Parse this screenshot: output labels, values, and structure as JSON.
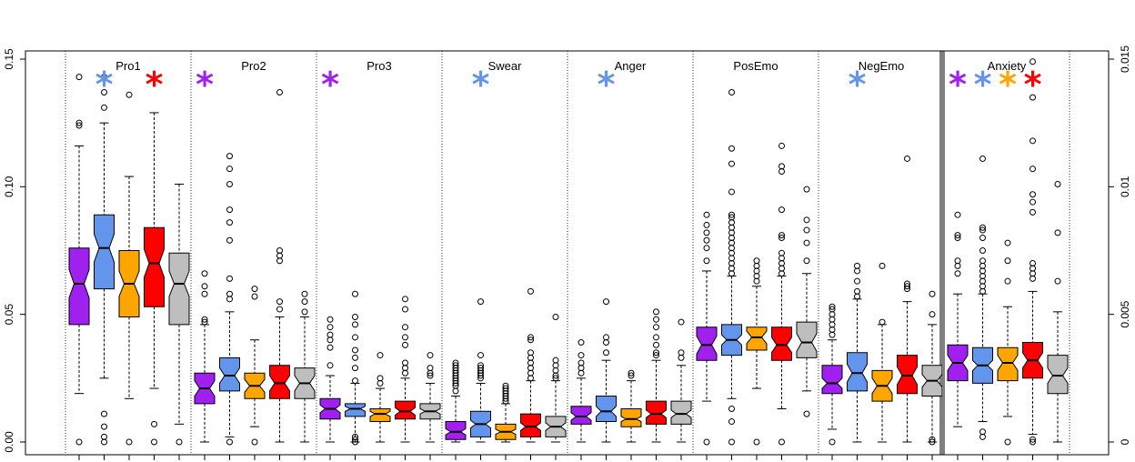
{
  "chart_data": {
    "type": "boxplot",
    "title": "",
    "xlabel": "",
    "ylabel": "",
    "y_left": {
      "lim": [
        0,
        0.155
      ],
      "ticks": [
        0.0,
        0.05,
        0.1,
        0.15
      ],
      "tick_labels": [
        "0.00",
        "0.05",
        "0.10",
        "0.15"
      ]
    },
    "y_right": {
      "lim": [
        0,
        0.0155
      ],
      "ticks": [
        0,
        0.005,
        0.01,
        0.015
      ],
      "tick_labels": [
        "0",
        "0.005",
        "0.01",
        "0.015"
      ]
    },
    "right_axis_groups": [
      "Anxiety"
    ],
    "series_colors": [
      "#a020f0",
      "#6495ed",
      "#ffa500",
      "#ff0000",
      "#bebebe"
    ],
    "groups": [
      {
        "label": "Pro1",
        "stars": [
          1,
          3
        ],
        "boxes": [
          {
            "q1": 0.046,
            "med": 0.062,
            "q3": 0.076,
            "lo": 0.019,
            "hi": 0.116,
            "notch": 0.0055,
            "out": [
              0.143,
              0.124,
              0.125,
              0.0
            ]
          },
          {
            "q1": 0.06,
            "med": 0.076,
            "q3": 0.089,
            "lo": 0.025,
            "hi": 0.125,
            "notch": 0.0055,
            "out": [
              0.143,
              0.137,
              0.131,
              0.011,
              0.006,
              0.002,
              0.0
            ]
          },
          {
            "q1": 0.049,
            "med": 0.062,
            "q3": 0.075,
            "lo": 0.017,
            "hi": 0.104,
            "notch": 0.005,
            "out": [
              0.136,
              0.0
            ]
          },
          {
            "q1": 0.053,
            "med": 0.07,
            "q3": 0.084,
            "lo": 0.021,
            "hi": 0.129,
            "notch": 0.0055,
            "out": [
              0.007,
              0.0
            ]
          },
          {
            "q1": 0.046,
            "med": 0.062,
            "q3": 0.074,
            "lo": 0.007,
            "hi": 0.101,
            "notch": 0.005,
            "out": [
              0.0
            ]
          }
        ]
      },
      {
        "label": "Pro2",
        "stars": [
          0
        ],
        "boxes": [
          {
            "q1": 0.015,
            "med": 0.021,
            "q3": 0.027,
            "lo": 0.0,
            "hi": 0.046,
            "notch": 0.003,
            "out": [
              0.066,
              0.061,
              0.058,
              0.048,
              0.047
            ]
          },
          {
            "q1": 0.02,
            "med": 0.026,
            "q3": 0.033,
            "lo": 0.002,
            "hi": 0.051,
            "notch": 0.003,
            "out": [
              0.112,
              0.107,
              0.101,
              0.091,
              0.086,
              0.079,
              0.064,
              0.058,
              0.056,
              0.0
            ]
          },
          {
            "q1": 0.017,
            "med": 0.022,
            "q3": 0.027,
            "lo": 0.006,
            "hi": 0.04,
            "notch": 0.0025,
            "out": [
              0.06,
              0.057,
              0.0
            ]
          },
          {
            "q1": 0.017,
            "med": 0.023,
            "q3": 0.03,
            "lo": 0.0,
            "hi": 0.049,
            "notch": 0.003,
            "out": [
              0.137,
              0.075,
              0.073,
              0.071,
              0.055,
              0.052
            ]
          },
          {
            "q1": 0.017,
            "med": 0.023,
            "q3": 0.029,
            "lo": 0.0,
            "hi": 0.049,
            "notch": 0.003,
            "out": [
              0.058,
              0.055,
              0.051
            ]
          }
        ]
      },
      {
        "label": "Pro3",
        "stars": [
          0
        ],
        "boxes": [
          {
            "q1": 0.009,
            "med": 0.013,
            "q3": 0.017,
            "lo": 0.0,
            "hi": 0.026,
            "notch": 0.0015,
            "out": [
              0.048,
              0.045,
              0.042,
              0.04,
              0.037,
              0.03
            ]
          },
          {
            "q1": 0.01,
            "med": 0.013,
            "q3": 0.015,
            "lo": 0.0,
            "hi": 0.023,
            "notch": 0.001,
            "out": [
              0.058,
              0.049,
              0.046,
              0.041,
              0.036,
              0.033,
              0.029,
              0.024,
              0.002,
              0.001,
              0.0
            ]
          },
          {
            "q1": 0.008,
            "med": 0.011,
            "q3": 0.013,
            "lo": 0.0,
            "hi": 0.021,
            "notch": 0.001,
            "out": [
              0.034,
              0.025,
              0.023
            ]
          },
          {
            "q1": 0.009,
            "med": 0.012,
            "q3": 0.016,
            "lo": 0.0,
            "hi": 0.025,
            "notch": 0.0015,
            "out": [
              0.056,
              0.052,
              0.045,
              0.041,
              0.038,
              0.031,
              0.029,
              0.027
            ]
          },
          {
            "q1": 0.009,
            "med": 0.012,
            "q3": 0.015,
            "lo": 0.0,
            "hi": 0.023,
            "notch": 0.001,
            "out": [
              0.034,
              0.029,
              0.027,
              0.026
            ]
          }
        ]
      },
      {
        "label": "Swear",
        "stars": [
          1
        ],
        "boxes": [
          {
            "q1": 0.001,
            "med": 0.004,
            "q3": 0.008,
            "lo": 0.0,
            "hi": 0.018,
            "notch": 0.0012,
            "out": [
              0.031,
              0.03,
              0.029,
              0.028,
              0.027,
              0.026,
              0.025,
              0.024,
              0.023,
              0.022,
              0.02
            ]
          },
          {
            "q1": 0.002,
            "med": 0.007,
            "q3": 0.012,
            "lo": 0.0,
            "hi": 0.023,
            "notch": 0.0015,
            "out": [
              0.055,
              0.034,
              0.03,
              0.029,
              0.028,
              0.027,
              0.026,
              0.025
            ]
          },
          {
            "q1": 0.001,
            "med": 0.004,
            "q3": 0.007,
            "lo": 0.0,
            "hi": 0.015,
            "notch": 0.001,
            "out": [
              0.022,
              0.021,
              0.02,
              0.019,
              0.018,
              0.017,
              0.016
            ]
          },
          {
            "q1": 0.002,
            "med": 0.006,
            "q3": 0.011,
            "lo": 0.0,
            "hi": 0.024,
            "notch": 0.0015,
            "out": [
              0.059,
              0.041,
              0.04,
              0.035,
              0.033,
              0.031,
              0.029,
              0.027,
              0.025
            ]
          },
          {
            "q1": 0.002,
            "med": 0.006,
            "q3": 0.01,
            "lo": 0.0,
            "hi": 0.024,
            "notch": 0.0015,
            "out": [
              0.049,
              0.032,
              0.03,
              0.028,
              0.026,
              0.025
            ]
          }
        ]
      },
      {
        "label": "Anger",
        "stars": [
          1
        ],
        "boxes": [
          {
            "q1": 0.007,
            "med": 0.01,
            "q3": 0.014,
            "lo": 0.0,
            "hi": 0.025,
            "notch": 0.0015,
            "out": [
              0.039,
              0.034,
              0.031,
              0.029,
              0.027
            ]
          },
          {
            "q1": 0.008,
            "med": 0.012,
            "q3": 0.018,
            "lo": 0.0,
            "hi": 0.032,
            "notch": 0.002,
            "out": [
              0.055,
              0.041,
              0.039,
              0.035
            ]
          },
          {
            "q1": 0.006,
            "med": 0.009,
            "q3": 0.013,
            "lo": 0.0,
            "hi": 0.024,
            "notch": 0.001,
            "out": [
              0.027,
              0.026
            ]
          },
          {
            "q1": 0.007,
            "med": 0.011,
            "q3": 0.016,
            "lo": 0.0,
            "hi": 0.032,
            "notch": 0.0015,
            "out": [
              0.051,
              0.048,
              0.045,
              0.041,
              0.038,
              0.035,
              0.034
            ]
          },
          {
            "q1": 0.007,
            "med": 0.011,
            "q3": 0.016,
            "lo": 0.0,
            "hi": 0.03,
            "notch": 0.0015,
            "out": [
              0.047,
              0.035,
              0.033
            ]
          }
        ]
      },
      {
        "label": "PosEmo",
        "stars": [],
        "boxes": [
          {
            "q1": 0.032,
            "med": 0.038,
            "q3": 0.045,
            "lo": 0.016,
            "hi": 0.067,
            "notch": 0.0035,
            "out": [
              0.089,
              0.085,
              0.082,
              0.079,
              0.076,
              0.071,
              0.0
            ]
          },
          {
            "q1": 0.034,
            "med": 0.04,
            "q3": 0.046,
            "lo": 0.017,
            "hi": 0.065,
            "notch": 0.002,
            "out": [
              0.137,
              0.115,
              0.109,
              0.098,
              0.089,
              0.088,
              0.086,
              0.084,
              0.082,
              0.08,
              0.078,
              0.076,
              0.074,
              0.072,
              0.07,
              0.068,
              0.066,
              0.013,
              0.008,
              0.0
            ]
          },
          {
            "q1": 0.036,
            "med": 0.041,
            "q3": 0.045,
            "lo": 0.021,
            "hi": 0.061,
            "notch": 0.0025,
            "out": [
              0.071,
              0.069,
              0.067,
              0.065,
              0.063,
              0.0
            ]
          },
          {
            "q1": 0.032,
            "med": 0.038,
            "q3": 0.045,
            "lo": 0.013,
            "hi": 0.065,
            "notch": 0.003,
            "out": [
              0.116,
              0.108,
              0.106,
              0.091,
              0.081,
              0.08,
              0.074,
              0.072,
              0.07,
              0.068,
              0.066,
              0.0
            ]
          },
          {
            "q1": 0.033,
            "med": 0.039,
            "q3": 0.047,
            "lo": 0.02,
            "hi": 0.066,
            "notch": 0.0035,
            "out": [
              0.099,
              0.087,
              0.083,
              0.078,
              0.071,
              0.011
            ]
          }
        ]
      },
      {
        "label": "NegEmo",
        "stars": [
          1
        ],
        "boxes": [
          {
            "q1": 0.019,
            "med": 0.023,
            "q3": 0.03,
            "lo": 0.005,
            "hi": 0.04,
            "notch": 0.002,
            "out": [
              0.053,
              0.052,
              0.05,
              0.048,
              0.046,
              0.044,
              0.042,
              0.0
            ]
          },
          {
            "q1": 0.02,
            "med": 0.027,
            "q3": 0.035,
            "lo": 0.0,
            "hi": 0.056,
            "notch": 0.0035,
            "out": [
              0.069,
              0.067,
              0.063,
              0.059,
              0.057
            ]
          },
          {
            "q1": 0.016,
            "med": 0.022,
            "q3": 0.028,
            "lo": 0.0,
            "hi": 0.046,
            "notch": 0.003,
            "out": [
              0.069,
              0.047
            ]
          },
          {
            "q1": 0.019,
            "med": 0.026,
            "q3": 0.034,
            "lo": 0.0,
            "hi": 0.055,
            "notch": 0.0035,
            "out": [
              0.111,
              0.062,
              0.061,
              0.06
            ]
          },
          {
            "q1": 0.018,
            "med": 0.024,
            "q3": 0.03,
            "lo": 0.0,
            "hi": 0.046,
            "notch": 0.0025,
            "out": [
              0.058,
              0.05,
              0.001,
              0.0
            ]
          }
        ]
      },
      {
        "label": "Anxiety",
        "stars": [
          0,
          1,
          2,
          3
        ],
        "boxes": [
          {
            "q1": 0.0024,
            "med": 0.0031,
            "q3": 0.0038,
            "lo": 0.0006,
            "hi": 0.0058,
            "notch": 0.0003,
            "out": [
              0.0089,
              0.0081,
              0.008,
              0.0071,
              0.0069,
              0.0066
            ]
          },
          {
            "q1": 0.0023,
            "med": 0.003,
            "q3": 0.0037,
            "lo": 0.0008,
            "hi": 0.0058,
            "notch": 0.0002,
            "out": [
              0.0111,
              0.0084,
              0.0083,
              0.008,
              0.0075,
              0.0071,
              0.0069,
              0.0067,
              0.0065,
              0.0063,
              0.0061,
              0.0059,
              0.0004,
              0.0002
            ]
          },
          {
            "q1": 0.0024,
            "med": 0.0031,
            "q3": 0.0037,
            "lo": 0.001,
            "hi": 0.0053,
            "notch": 0.0003,
            "out": [
              0.0078,
              0.0071,
              0.0063,
              0.0
            ]
          },
          {
            "q1": 0.0025,
            "med": 0.0032,
            "q3": 0.0039,
            "lo": 0.0003,
            "hi": 0.0059,
            "notch": 0.0003,
            "out": [
              0.0149,
              0.0135,
              0.0118,
              0.0107,
              0.0097,
              0.0094,
              0.009,
              0.007,
              0.0068,
              0.0066,
              0.0064,
              0.0001,
              0.0
            ]
          },
          {
            "q1": 0.0019,
            "med": 0.0026,
            "q3": 0.0034,
            "lo": 0.0,
            "hi": 0.0051,
            "notch": 0.0003,
            "out": [
              0.0101,
              0.0082,
              0.0063
            ]
          }
        ]
      }
    ]
  }
}
